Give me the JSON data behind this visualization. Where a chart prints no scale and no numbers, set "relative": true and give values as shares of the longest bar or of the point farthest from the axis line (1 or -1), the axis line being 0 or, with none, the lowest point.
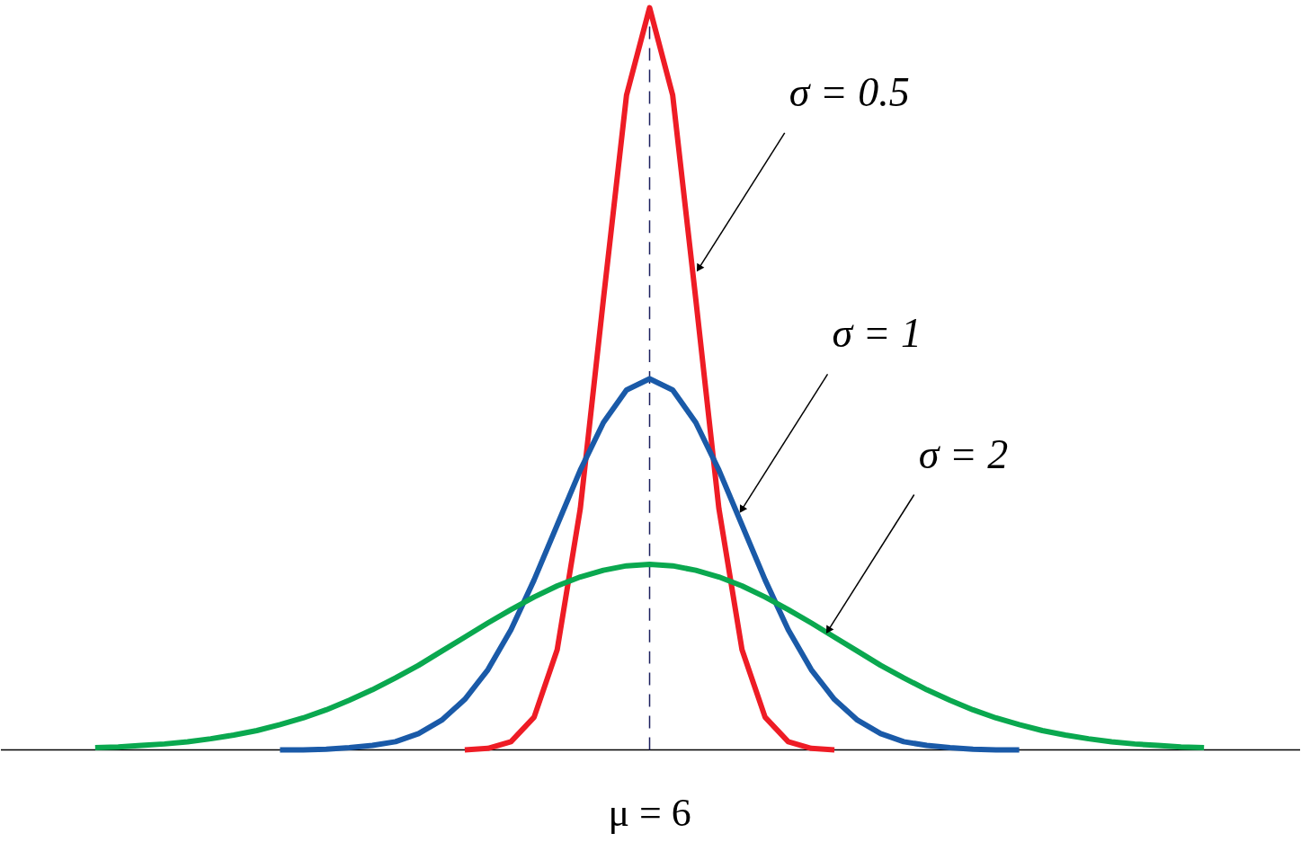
{
  "chart_data": {
    "type": "line",
    "relative": true,
    "grid": false,
    "marker": "none",
    "line_style": "solid",
    "categories": [
      null,
      null,
      null,
      null,
      null,
      null,
      null,
      null,
      null,
      null,
      null,
      null,
      null,
      null,
      null,
      null,
      null,
      null,
      null,
      null,
      null,
      null,
      null,
      null,
      null,
      null,
      null,
      null,
      null,
      null,
      null,
      null,
      null,
      null,
      null,
      null,
      null,
      null,
      null,
      null,
      null,
      null,
      null,
      null,
      null,
      null,
      null,
      null,
      null
    ],
    "series": [
      {
        "name": "σ = 0.5",
        "color": "#ee1c25",
        "values": [
          null,
          null,
          null,
          null,
          null,
          null,
          null,
          null,
          null,
          null,
          null,
          null,
          null,
          null,
          null,
          null,
          0.0,
          0.002,
          0.011,
          0.044,
          0.135,
          0.325,
          0.607,
          0.882,
          1.0,
          0.882,
          0.607,
          0.325,
          0.135,
          0.044,
          0.011,
          0.002,
          0.0,
          null,
          null,
          null,
          null,
          null,
          null,
          null,
          null,
          null,
          null,
          null,
          null,
          null,
          null,
          null,
          null
        ]
      },
      {
        "name": "σ = 1",
        "color": "#1a5aa8",
        "values": [
          null,
          null,
          null,
          null,
          null,
          null,
          null,
          null,
          0.0,
          0.0,
          0.001,
          0.003,
          0.006,
          0.011,
          0.022,
          0.04,
          0.068,
          0.108,
          0.162,
          0.229,
          0.303,
          0.377,
          0.441,
          0.485,
          0.5,
          0.485,
          0.441,
          0.377,
          0.303,
          0.229,
          0.162,
          0.108,
          0.068,
          0.04,
          0.022,
          0.011,
          0.006,
          0.003,
          0.001,
          0.0,
          0.0,
          null,
          null,
          null,
          null,
          null,
          null,
          null,
          null
        ]
      },
      {
        "name": "σ = 2",
        "color": "#0aa84f",
        "values": [
          0.003,
          0.004,
          0.006,
          0.008,
          0.011,
          0.015,
          0.02,
          0.026,
          0.034,
          0.043,
          0.054,
          0.067,
          0.081,
          0.097,
          0.114,
          0.133,
          0.152,
          0.171,
          0.189,
          0.206,
          0.221,
          0.233,
          0.242,
          0.248,
          0.25,
          0.248,
          0.242,
          0.233,
          0.221,
          0.206,
          0.189,
          0.171,
          0.152,
          0.133,
          0.114,
          0.097,
          0.081,
          0.067,
          0.054,
          0.043,
          0.034,
          0.026,
          0.02,
          0.015,
          0.011,
          0.008,
          0.006,
          0.004,
          0.003
        ]
      }
    ],
    "ref_lines": [
      {
        "axis": "x",
        "label": "μ = 6",
        "color": "#1b1f5e",
        "line_style": "dashed"
      }
    ]
  }
}
